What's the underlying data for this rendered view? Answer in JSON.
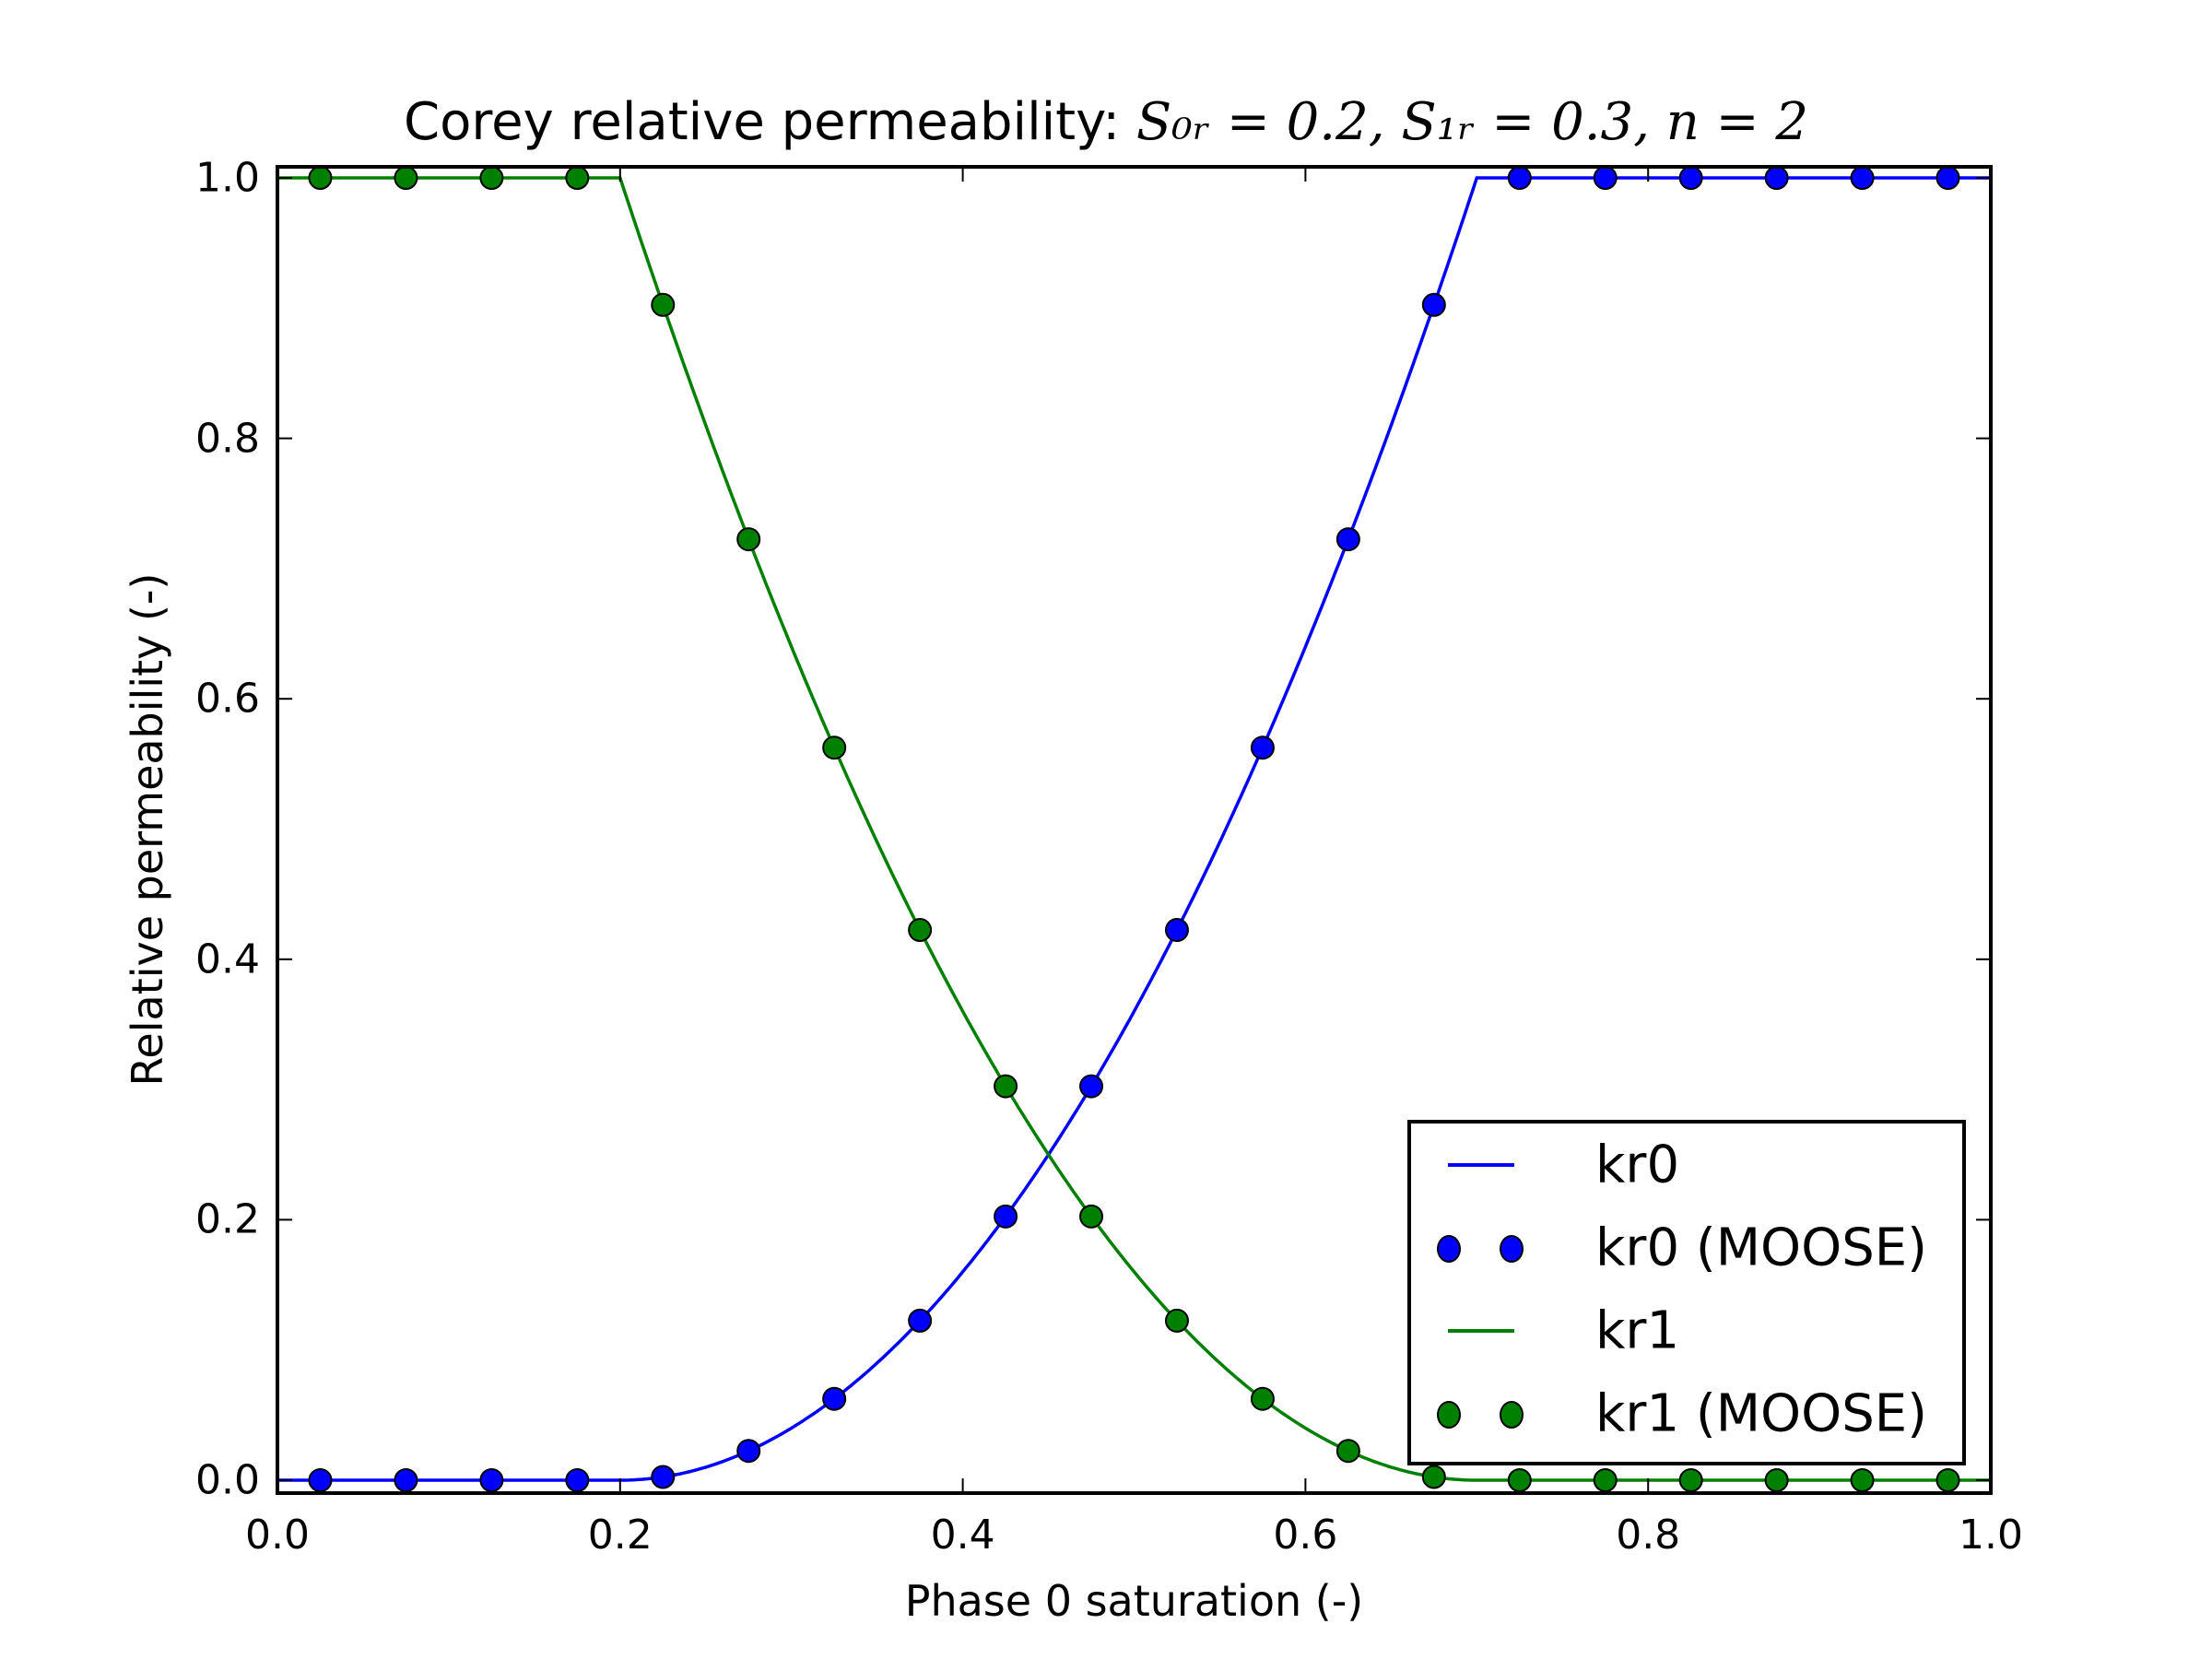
{
  "title": {
    "text": "Corey relative permeability: ",
    "math": "S₀ᵣ = 0.2, S₁ᵣ = 0.3, n = 2"
  },
  "axes": {
    "xlabel": "Phase 0 saturation (-)",
    "ylabel": "Relative permeability (-)",
    "xticks": [
      "0.0",
      "0.2",
      "0.4",
      "0.6",
      "0.8",
      "1.0"
    ],
    "yticks": [
      "0.0",
      "0.2",
      "0.4",
      "0.6",
      "0.8",
      "1.0"
    ]
  },
  "legend": {
    "items": [
      {
        "label": "kr0",
        "type": "line",
        "color": "#0000ff"
      },
      {
        "label": "kr0 (MOOSE)",
        "type": "marker",
        "color": "#0000ff"
      },
      {
        "label": "kr1",
        "type": "line",
        "color": "#008000"
      },
      {
        "label": "kr1 (MOOSE)",
        "type": "marker",
        "color": "#008000"
      }
    ]
  },
  "colors": {
    "kr0": "#0000ff",
    "kr1": "#008000",
    "axes": "#000000",
    "background": "#ffffff"
  },
  "chart_data": {
    "type": "line",
    "title": "Corey relative permeability: S_{0r} = 0.2, S_{1r} = 0.3, n = 2",
    "xlabel": "Phase 0 saturation (-)",
    "ylabel": "Relative permeability (-)",
    "xlim": [
      0.0,
      1.0
    ],
    "ylim": [
      -0.01,
      1.01
    ],
    "xticks": [
      0.0,
      0.2,
      0.4,
      0.6,
      0.8,
      1.0
    ],
    "yticks": [
      0.0,
      0.2,
      0.4,
      0.6,
      0.8,
      1.0
    ],
    "grid": false,
    "legend_position": "lower right",
    "parameters": {
      "S0r": 0.2,
      "S1r": 0.3,
      "n": 2
    },
    "series": [
      {
        "name": "kr0",
        "style": "line",
        "color": "#0000ff",
        "x": [
          0.0,
          0.2,
          0.25,
          0.3,
          0.35,
          0.4,
          0.45,
          0.5,
          0.55,
          0.6,
          0.65,
          0.7,
          0.75,
          1.0
        ],
        "y": [
          0.0,
          0.0,
          0.01,
          0.04,
          0.09,
          0.16,
          0.25,
          0.36,
          0.49,
          0.64,
          0.81,
          1.0,
          1.0,
          1.0
        ]
      },
      {
        "name": "kr0 (MOOSE)",
        "style": "markers",
        "color": "#0000ff",
        "x": [
          0.025,
          0.075,
          0.125,
          0.175,
          0.225,
          0.275,
          0.325,
          0.375,
          0.425,
          0.475,
          0.525,
          0.575,
          0.625,
          0.675,
          0.725,
          0.775,
          0.825,
          0.875,
          0.925,
          0.975
        ],
        "y": [
          0.0,
          0.0,
          0.0,
          0.0,
          0.0025,
          0.0225,
          0.0625,
          0.1225,
          0.2025,
          0.3025,
          0.4225,
          0.5625,
          0.7225,
          0.9025,
          1.0,
          1.0,
          1.0,
          1.0,
          1.0,
          1.0
        ]
      },
      {
        "name": "kr1",
        "style": "line",
        "color": "#008000",
        "x": [
          0.0,
          0.2,
          0.25,
          0.3,
          0.35,
          0.4,
          0.45,
          0.5,
          0.55,
          0.6,
          0.65,
          0.7,
          0.75,
          1.0
        ],
        "y": [
          1.0,
          1.0,
          0.81,
          0.64,
          0.49,
          0.36,
          0.25,
          0.16,
          0.09,
          0.04,
          0.01,
          0.0,
          0.0,
          0.0
        ]
      },
      {
        "name": "kr1 (MOOSE)",
        "style": "markers",
        "color": "#008000",
        "x": [
          0.025,
          0.075,
          0.125,
          0.175,
          0.225,
          0.275,
          0.325,
          0.375,
          0.425,
          0.475,
          0.525,
          0.575,
          0.625,
          0.675,
          0.725,
          0.775,
          0.825,
          0.875,
          0.925,
          0.975
        ],
        "y": [
          1.0,
          1.0,
          1.0,
          1.0,
          0.9025,
          0.7225,
          0.5625,
          0.4225,
          0.3025,
          0.2025,
          0.1225,
          0.0625,
          0.0225,
          0.0025,
          0.0,
          0.0,
          0.0,
          0.0,
          0.0,
          0.0
        ]
      }
    ]
  }
}
